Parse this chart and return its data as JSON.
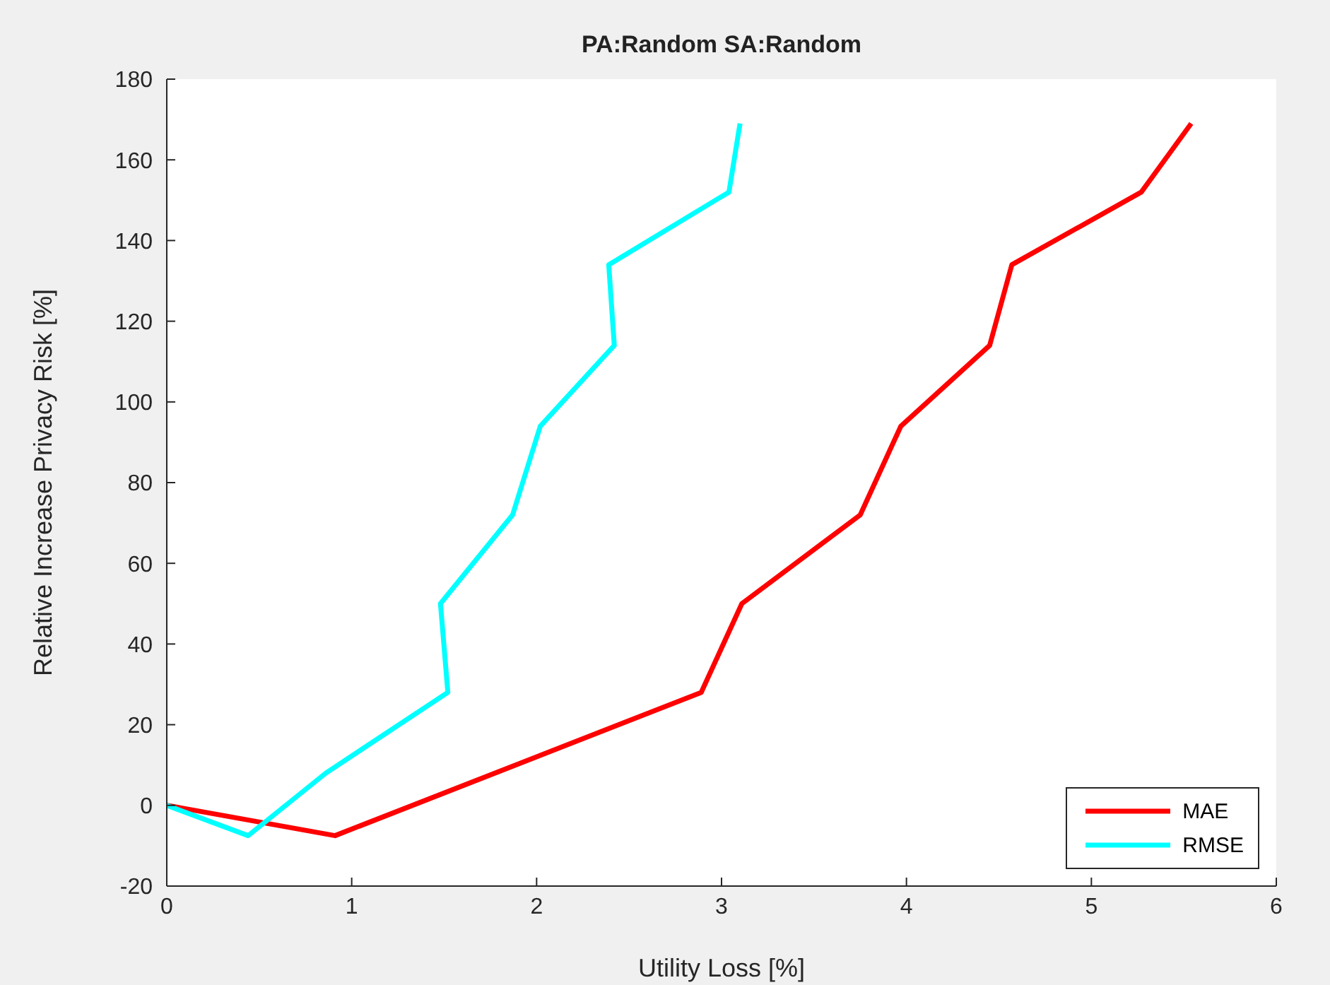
{
  "chart_data": {
    "type": "line",
    "title": "PA:Random SA:Random",
    "xlabel": "Utility Loss [%]",
    "ylabel": "Relative Increase Privacy Risk [%]",
    "xlim": [
      0,
      6
    ],
    "xticks": [
      0,
      1,
      2,
      3,
      4,
      5,
      6
    ],
    "ylim": [
      -20,
      180
    ],
    "yticks": [
      -20,
      0,
      20,
      40,
      60,
      80,
      100,
      120,
      140,
      160,
      180
    ],
    "grid": false,
    "legend": "bottom right",
    "marker": "none",
    "line_style": "solid",
    "series": [
      {
        "name": "MAE",
        "color": "#ff0000",
        "x": [
          0,
          0.91,
          2.89,
          3.11,
          3.75,
          3.97,
          4.45,
          4.57,
          5.27,
          5.54
        ],
        "values": [
          0,
          -7.5,
          28,
          50,
          72,
          94,
          114,
          134,
          152,
          169
        ]
      },
      {
        "name": "RMSE",
        "color": "#00ffff",
        "x": [
          0,
          0.44,
          0.86,
          1.52,
          1.48,
          1.87,
          2.02,
          2.42,
          2.39,
          3.04,
          3.1
        ],
        "values": [
          0,
          -7.5,
          8,
          28,
          50,
          72,
          94,
          114,
          134,
          152,
          169
        ]
      }
    ]
  }
}
